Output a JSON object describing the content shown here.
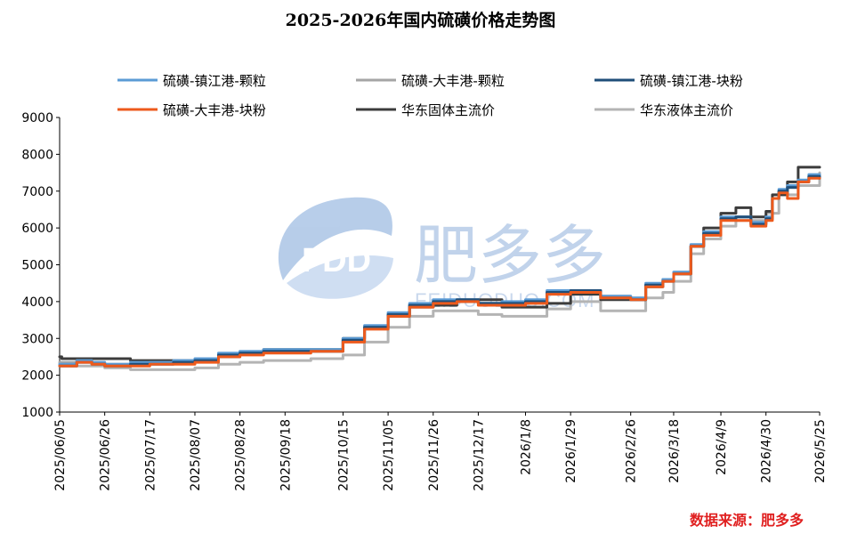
{
  "chart_data": {
    "type": "line",
    "title": "2025-2026年国内硫磺价格走势图",
    "source": "数据来源：肥多多",
    "watermark": {
      "brand": "肥多多",
      "logo": "FDD",
      "url": "FEIDUODUO.COM"
    },
    "ylim": [
      1000,
      9000
    ],
    "yticks": [
      1000,
      2000,
      3000,
      4000,
      5000,
      6000,
      7000,
      8000,
      9000
    ],
    "xlim": [
      "2025-06-05",
      "2026-05-25"
    ],
    "xticks": [
      "2025/06/05",
      "2025/06/26",
      "2025/07/17",
      "2025/08/07",
      "2025/08/28",
      "2025/09/18",
      "2025/10/15",
      "2025/11/05",
      "2025/11/26",
      "2025/12/17",
      "2026/1/8",
      "2026/1/29",
      "2026/2/26",
      "2026/3/18",
      "2026/4/9",
      "2026/4/30",
      "2026/5/25"
    ],
    "grid": false,
    "legend_position": "top",
    "series": [
      {
        "name": "硫磺-镇江港-颗粒",
        "color": "#5b9bd5",
        "width": 3,
        "x": [
          "2025-06-05",
          "2025-06-13",
          "2025-06-20",
          "2025-06-26",
          "2025-07-08",
          "2025-07-17",
          "2025-07-28",
          "2025-08-07",
          "2025-08-18",
          "2025-08-28",
          "2025-09-08",
          "2025-09-18",
          "2025-09-30",
          "2025-10-15",
          "2025-10-25",
          "2025-11-05",
          "2025-11-15",
          "2025-11-26",
          "2025-12-07",
          "2025-12-17",
          "2025-12-28",
          "2026-01-08",
          "2026-01-18",
          "2026-01-29",
          "2026-02-12",
          "2026-02-26",
          "2026-03-05",
          "2026-03-13",
          "2026-03-18",
          "2026-03-26",
          "2026-04-01",
          "2026-04-09",
          "2026-04-16",
          "2026-04-23",
          "2026-04-30",
          "2026-05-03",
          "2026-05-06",
          "2026-05-10",
          "2026-05-15",
          "2026-05-20",
          "2026-05-25"
        ],
        "y": [
          2300,
          2400,
          2350,
          2300,
          2350,
          2350,
          2400,
          2450,
          2600,
          2650,
          2700,
          2700,
          2700,
          3000,
          3350,
          3700,
          3950,
          4050,
          4050,
          3950,
          4000,
          4050,
          4300,
          4300,
          4150,
          4100,
          4500,
          4600,
          4800,
          5550,
          5900,
          6300,
          6300,
          6150,
          6300,
          6800,
          7050,
          7150,
          7300,
          7450,
          7450
        ]
      },
      {
        "name": "硫磺-大丰港-颗粒",
        "color": "#a5a5a5",
        "width": 3,
        "x": [
          "2025-06-05",
          "2025-06-13",
          "2025-06-20",
          "2025-06-26",
          "2025-07-08",
          "2025-07-17",
          "2025-07-28",
          "2025-08-07",
          "2025-08-18",
          "2025-08-28",
          "2025-09-08",
          "2025-09-18",
          "2025-09-30",
          "2025-10-15",
          "2025-10-25",
          "2025-11-05",
          "2025-11-15",
          "2025-11-26",
          "2025-12-07",
          "2025-12-17",
          "2025-12-28",
          "2026-01-08",
          "2026-01-18",
          "2026-01-29",
          "2026-02-12",
          "2026-02-26",
          "2026-03-05",
          "2026-03-13",
          "2026-03-18",
          "2026-03-26",
          "2026-04-01",
          "2026-04-09",
          "2026-04-16",
          "2026-04-23",
          "2026-04-30",
          "2026-05-03",
          "2026-05-06",
          "2026-05-10",
          "2026-05-15",
          "2026-05-20",
          "2026-05-25"
        ],
        "y": [
          2350,
          2400,
          2350,
          2300,
          2300,
          2350,
          2350,
          2400,
          2550,
          2600,
          2650,
          2650,
          2650,
          2950,
          3300,
          3650,
          3900,
          4000,
          4050,
          3950,
          3950,
          4000,
          4250,
          4300,
          4150,
          4100,
          4450,
          4600,
          4800,
          5500,
          5850,
          6250,
          6300,
          6100,
          6250,
          6800,
          7000,
          7100,
          7250,
          7400,
          7400
        ]
      },
      {
        "name": "硫磺-镇江港-块粉",
        "color": "#1f4e79",
        "width": 3,
        "x": [
          "2025-06-05",
          "2025-06-13",
          "2025-06-20",
          "2025-06-26",
          "2025-07-08",
          "2025-07-17",
          "2025-07-28",
          "2025-08-07",
          "2025-08-18",
          "2025-08-28",
          "2025-09-08",
          "2025-09-18",
          "2025-09-30",
          "2025-10-15",
          "2025-10-25",
          "2025-11-05",
          "2025-11-15",
          "2025-11-26",
          "2025-12-07",
          "2025-12-17",
          "2025-12-28",
          "2026-01-08",
          "2026-01-18",
          "2026-01-29",
          "2026-02-12",
          "2026-02-26",
          "2026-03-05",
          "2026-03-13",
          "2026-03-18",
          "2026-03-26",
          "2026-04-01",
          "2026-04-09",
          "2026-04-16",
          "2026-04-23",
          "2026-04-30",
          "2026-05-03",
          "2026-05-06",
          "2026-05-10",
          "2026-05-15",
          "2026-05-20",
          "2026-05-25"
        ],
        "y": [
          2250,
          2350,
          2300,
          2250,
          2300,
          2300,
          2350,
          2400,
          2550,
          2600,
          2650,
          2650,
          2650,
          2950,
          3300,
          3650,
          3900,
          4000,
          4050,
          3950,
          3950,
          4000,
          4250,
          4300,
          4100,
          4050,
          4450,
          4550,
          4750,
          5500,
          5850,
          6250,
          6300,
          6100,
          6250,
          6800,
          7000,
          7100,
          7250,
          7400,
          7350
        ]
      },
      {
        "name": "硫磺-大丰港-块粉",
        "color": "#ed5a1c",
        "width": 3,
        "x": [
          "2025-06-05",
          "2025-06-13",
          "2025-06-20",
          "2025-06-26",
          "2025-07-08",
          "2025-07-17",
          "2025-07-28",
          "2025-08-07",
          "2025-08-18",
          "2025-08-28",
          "2025-09-08",
          "2025-09-18",
          "2025-09-30",
          "2025-10-15",
          "2025-10-25",
          "2025-11-05",
          "2025-11-15",
          "2025-11-26",
          "2025-12-07",
          "2025-12-17",
          "2025-12-28",
          "2026-01-08",
          "2026-01-18",
          "2026-01-29",
          "2026-02-12",
          "2026-02-26",
          "2026-03-05",
          "2026-03-13",
          "2026-03-18",
          "2026-03-26",
          "2026-04-01",
          "2026-04-09",
          "2026-04-16",
          "2026-04-23",
          "2026-04-30",
          "2026-05-03",
          "2026-05-06",
          "2026-05-10",
          "2026-05-15",
          "2026-05-20",
          "2026-05-25"
        ],
        "y": [
          2250,
          2350,
          2300,
          2250,
          2250,
          2300,
          2300,
          2350,
          2500,
          2550,
          2600,
          2600,
          2650,
          2900,
          3250,
          3600,
          3850,
          3950,
          4000,
          3900,
          3900,
          3950,
          4200,
          4250,
          4100,
          4050,
          4400,
          4550,
          4750,
          5500,
          5800,
          6200,
          6200,
          6050,
          6200,
          6800,
          6950,
          6800,
          7250,
          7350,
          7350
        ]
      },
      {
        "name": "华东固体主流价",
        "color": "#3c3c3c",
        "width": 3,
        "x": [
          "2025-06-05",
          "2025-06-06",
          "2025-06-26",
          "2025-07-08",
          "2025-07-17",
          "2025-08-07",
          "2025-08-18",
          "2025-08-28",
          "2025-09-08",
          "2025-09-30",
          "2025-10-15",
          "2025-10-25",
          "2025-11-05",
          "2025-11-15",
          "2025-11-26",
          "2025-12-07",
          "2025-12-17",
          "2025-12-28",
          "2026-01-08",
          "2026-01-18",
          "2026-01-29",
          "2026-02-12",
          "2026-02-26",
          "2026-03-05",
          "2026-03-13",
          "2026-03-18",
          "2026-03-26",
          "2026-04-01",
          "2026-04-09",
          "2026-04-16",
          "2026-04-23",
          "2026-04-30",
          "2026-05-03",
          "2026-05-10",
          "2026-05-15",
          "2026-05-25"
        ],
        "y": [
          2500,
          2450,
          2450,
          2400,
          2400,
          2400,
          2500,
          2600,
          2700,
          2700,
          3000,
          3300,
          3600,
          3850,
          3900,
          4000,
          4050,
          3850,
          3850,
          3950,
          4200,
          4050,
          4050,
          4400,
          4600,
          4750,
          5500,
          6000,
          6400,
          6550,
          6300,
          6450,
          6900,
          7250,
          7650,
          7650
        ]
      },
      {
        "name": "华东液体主流价",
        "color": "#b4b4b4",
        "width": 3,
        "x": [
          "2025-06-05",
          "2025-06-10",
          "2025-06-26",
          "2025-07-08",
          "2025-07-17",
          "2025-07-28",
          "2025-08-07",
          "2025-08-18",
          "2025-08-28",
          "2025-09-08",
          "2025-09-30",
          "2025-10-15",
          "2025-10-25",
          "2025-11-05",
          "2025-11-15",
          "2025-11-26",
          "2025-12-07",
          "2025-12-17",
          "2025-12-28",
          "2026-01-08",
          "2026-01-18",
          "2026-01-29",
          "2026-02-12",
          "2026-02-26",
          "2026-03-05",
          "2026-03-13",
          "2026-03-18",
          "2026-03-26",
          "2026-04-01",
          "2026-04-09",
          "2026-04-16",
          "2026-04-23",
          "2026-04-30",
          "2026-05-06",
          "2026-05-15",
          "2026-05-25"
        ],
        "y": [
          2300,
          2250,
          2200,
          2150,
          2150,
          2150,
          2200,
          2300,
          2350,
          2400,
          2450,
          2550,
          2900,
          3300,
          3600,
          3750,
          3750,
          3650,
          3600,
          3600,
          3800,
          4000,
          3750,
          3750,
          4100,
          4250,
          4550,
          5300,
          5700,
          6050,
          6200,
          6200,
          6400,
          6900,
          7150,
          7500
        ]
      }
    ]
  }
}
